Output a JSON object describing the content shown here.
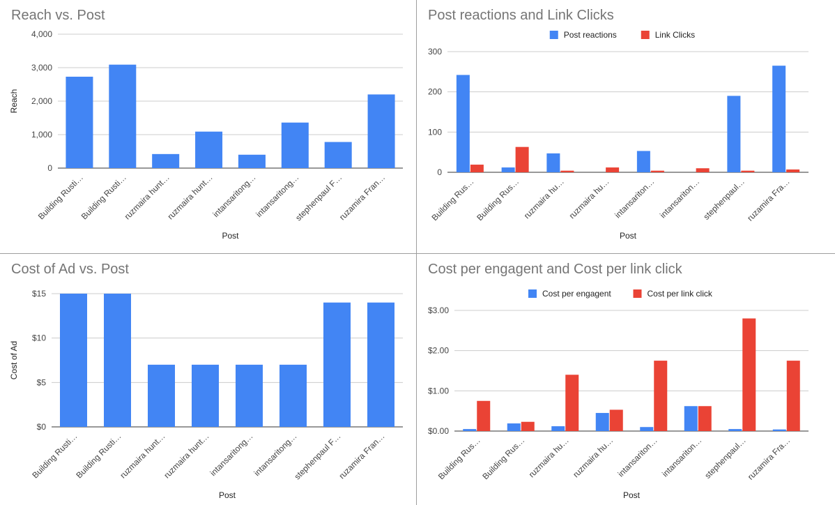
{
  "colors": {
    "blue": "#4285f4",
    "red": "#ea4335",
    "grid": "#cccccc",
    "axis": "#333333"
  },
  "chart_data": [
    {
      "type": "bar",
      "title": "Reach vs. Post",
      "xlabel": "Post",
      "ylabel": "Reach",
      "ylim": [
        0,
        4000
      ],
      "yticks": [
        "0",
        "1,000",
        "2,000",
        "3,000",
        "4,000"
      ],
      "categories": [
        "Building Rusti…",
        "Building Rusti…",
        "ruzmaira hunt…",
        "ruzmaira hunt…",
        "intansaritong…",
        "intansaritong…",
        "stephenpaul F…",
        "ruzamira Fran…"
      ],
      "series": [
        {
          "values": [
            2730,
            3090,
            420,
            1090,
            400,
            1360,
            780,
            2200
          ],
          "color": "#4285f4"
        }
      ],
      "legend": "none"
    },
    {
      "type": "bar",
      "title": "Post reactions and Link Clicks",
      "xlabel": "Post",
      "ylabel": "",
      "ylim": [
        0,
        300
      ],
      "yticks": [
        "0",
        "100",
        "200",
        "300"
      ],
      "categories": [
        "Building Rus…",
        "Building Rus…",
        "ruzmaira hu…",
        "ruzmaira hu…",
        "intansariton…",
        "intansariton…",
        "stephenpaul…",
        "ruzamira Fra…"
      ],
      "series": [
        {
          "name": "Post reactions",
          "values": [
            242,
            12,
            47,
            0,
            53,
            0,
            190,
            265
          ],
          "color": "#4285f4"
        },
        {
          "name": "Link Clicks",
          "values": [
            19,
            63,
            4,
            12,
            4,
            10,
            4,
            7
          ],
          "color": "#ea4335"
        }
      ],
      "legend": "top"
    },
    {
      "type": "bar",
      "title": "Cost of Ad vs. Post",
      "xlabel": "Post",
      "ylabel": "Cost of Ad",
      "ylim": [
        0,
        15
      ],
      "yticks": [
        "$0",
        "$5",
        "$10",
        "$15"
      ],
      "categories": [
        "Building Rusti…",
        "Building Rusti…",
        "ruzmaira hunt…",
        "ruzmaira hunt…",
        "intansaritong…",
        "intansaritong…",
        "stephenpaul F…",
        "ruzamira Fran…"
      ],
      "series": [
        {
          "values": [
            15,
            15,
            7,
            7,
            7,
            7,
            14,
            14
          ],
          "color": "#4285f4"
        }
      ],
      "legend": "none"
    },
    {
      "type": "bar",
      "title": "Cost per engagent and Cost per link click",
      "xlabel": "Post",
      "ylabel": "",
      "ylim": [
        0,
        3
      ],
      "yticks": [
        "$0.00",
        "$1.00",
        "$2.00",
        "$3.00"
      ],
      "categories": [
        "Building Rus…",
        "Building Rus…",
        "ruzmaira hu…",
        "ruzmaira hu…",
        "intansariton…",
        "intansariton…",
        "stephenpaul…",
        "ruzamira Fra…"
      ],
      "series": [
        {
          "name": "Cost per engagent",
          "values": [
            0.05,
            0.19,
            0.12,
            0.45,
            0.1,
            0.62,
            0.05,
            0.04
          ],
          "color": "#4285f4"
        },
        {
          "name": "Cost per link click",
          "values": [
            0.75,
            0.23,
            1.4,
            0.53,
            1.75,
            0.62,
            2.8,
            1.75
          ],
          "color": "#ea4335"
        }
      ],
      "legend": "top"
    }
  ]
}
